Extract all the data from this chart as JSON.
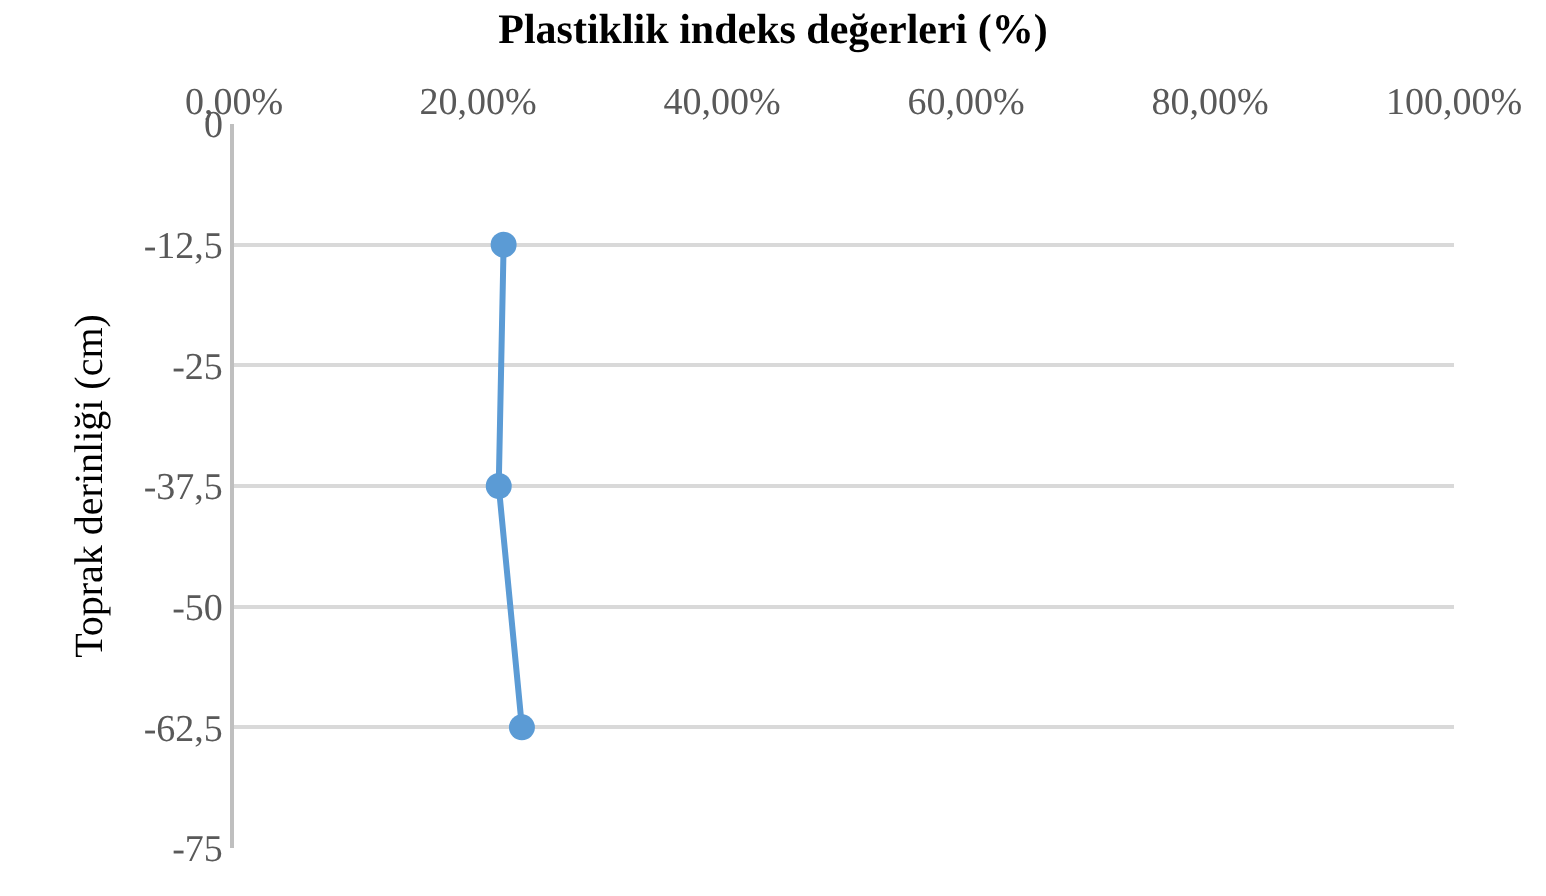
{
  "chart_data": {
    "type": "line",
    "title": "Plastiklik indeks değerleri (%)",
    "ylabel": "Toprak derinliği (cm)",
    "x": [
      22.1,
      21.7,
      23.6
    ],
    "series": [
      {
        "color": "#5b9bd5",
        "values": [
          -12.5,
          -37.5,
          -62.5
        ]
      }
    ],
    "xlim": [
      0,
      100
    ],
    "xticks": [
      {
        "value": 0,
        "label": "0,00%"
      },
      {
        "value": 20,
        "label": "20,00%"
      },
      {
        "value": 40,
        "label": "40,00%"
      },
      {
        "value": 60,
        "label": "60,00%"
      },
      {
        "value": 80,
        "label": "80,00%"
      },
      {
        "value": 100,
        "label": "100,00%"
      }
    ],
    "ylim": [
      -75,
      0
    ],
    "yticks": [
      0,
      {
        "value": -12.5,
        "label": "-12,5"
      },
      -25,
      {
        "value": -37.5,
        "label": "-37,5"
      },
      -50,
      {
        "value": -62.5,
        "label": "-62,5"
      },
      -75
    ],
    "grid": "y",
    "marker": "circle",
    "line_style": "solid",
    "legend": false
  }
}
